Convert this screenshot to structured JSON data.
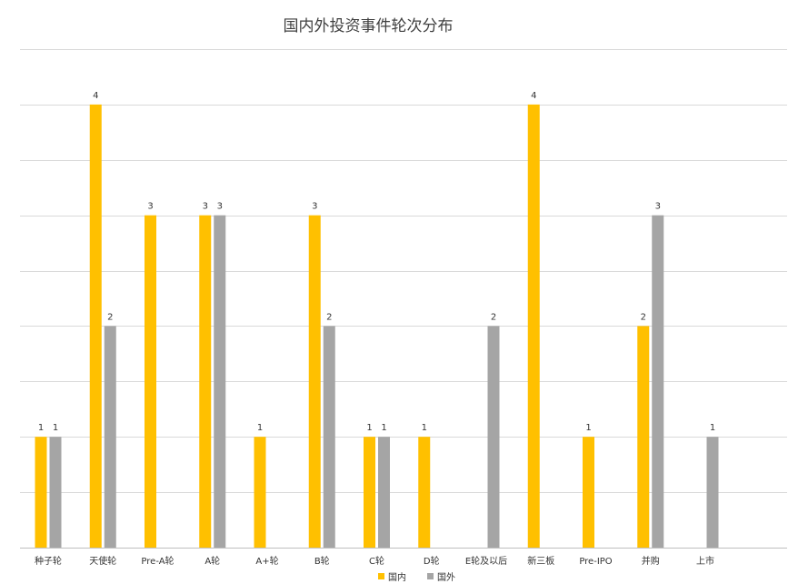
{
  "chart_data": {
    "type": "bar",
    "title": "国内外投资事件轮次分布",
    "xlabel": "",
    "ylabel": "",
    "ylim": [
      0,
      4.5
    ],
    "grid": true,
    "legend_position": "bottom",
    "categories": [
      "种子轮",
      "天使轮",
      "Pre-A轮",
      "A轮",
      "A+轮",
      "B轮",
      "C轮",
      "D轮",
      "E轮及以后",
      "新三板",
      "Pre-IPO",
      "并购",
      "上市"
    ],
    "series": [
      {
        "name": "国内",
        "color": "#FFC000",
        "values": [
          1,
          4,
          3,
          3,
          1,
          3,
          1,
          1,
          null,
          4,
          1,
          2,
          null
        ]
      },
      {
        "name": "国外",
        "color": "#A5A5A5",
        "values": [
          1,
          2,
          null,
          3,
          null,
          2,
          1,
          null,
          2,
          null,
          null,
          3,
          1
        ]
      }
    ]
  }
}
